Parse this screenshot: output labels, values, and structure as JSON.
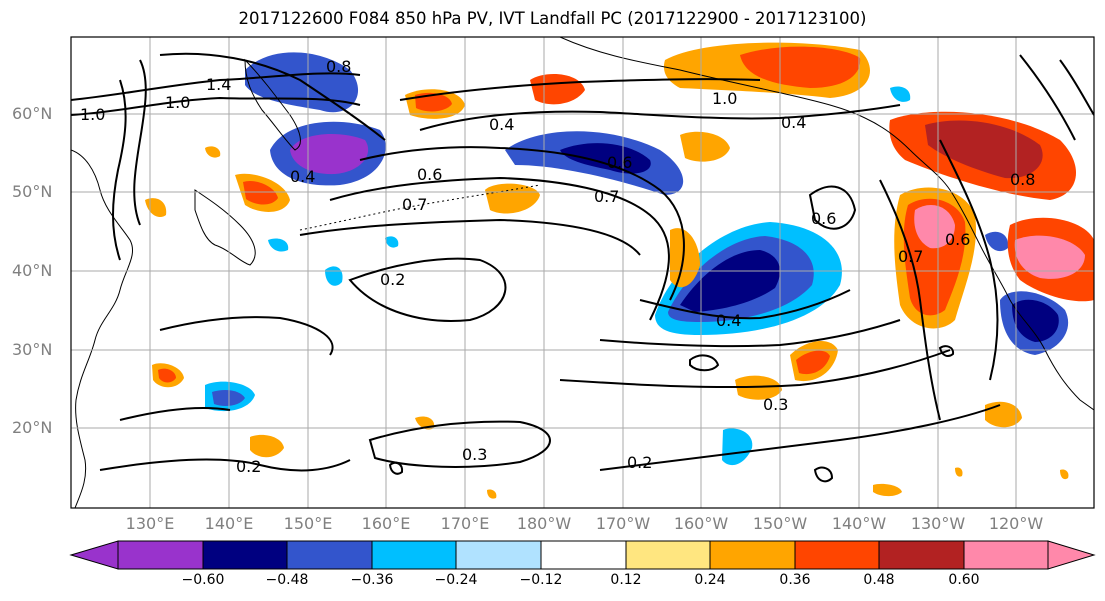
{
  "title": "2017122600 F084 850 hPa PV, IVT Landfall PC (2017122900 - 2017123100)",
  "lat_ticks": [
    "60°N",
    "50°N",
    "40°N",
    "30°N",
    "20°N"
  ],
  "lon_ticks": [
    "130°E",
    "140°E",
    "150°E",
    "160°E",
    "170°E",
    "180°W",
    "170°W",
    "160°W",
    "150°W",
    "140°W",
    "130°W",
    "120°W"
  ],
  "contour_labels": [
    "1.4",
    "1.0",
    "1.0",
    "0.8",
    "0.6",
    "0.4",
    "0.7",
    "0.6",
    "0.4",
    "1.0",
    "0.4",
    "0.7",
    "0.6",
    "0.2",
    "0.4",
    "0.6",
    "0.3",
    "0.3",
    "0.2",
    "0.2",
    "0.7",
    "0.8"
  ],
  "colorbar": {
    "tick_labels": [
      "−0.60",
      "−0.48",
      "−0.36",
      "−0.24",
      "−0.12",
      "0.12",
      "0.24",
      "0.36",
      "0.48",
      "0.60"
    ],
    "colors": [
      "#9933cc",
      "#000080",
      "#3355cc",
      "#00bfff",
      "#b0e2ff",
      "#ffffff",
      "#ffe680",
      "#ffa500",
      "#ff4500",
      "#b22222",
      "#ff88aa"
    ]
  }
}
